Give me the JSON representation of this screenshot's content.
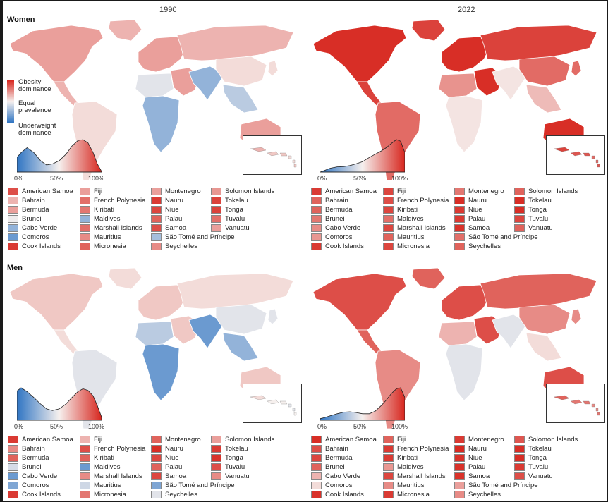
{
  "years": [
    "1990",
    "2022"
  ],
  "sections": [
    "Women",
    "Men"
  ],
  "colorbar": {
    "top": "Obesity dominance",
    "mid": "Equal prevalence",
    "bottom": "Underweight dominance",
    "top_lines": [
      "Obesity",
      "dominance"
    ],
    "mid_lines": [
      "Equal",
      "prevalence"
    ],
    "bottom_lines": [
      "Underweight",
      "dominance"
    ]
  },
  "density_ticks": [
    "0%",
    "50%",
    "100%"
  ],
  "colors": {
    "obesity": "#d7261e",
    "equal": "#f6f0ee",
    "underweight": "#2f75c3"
  },
  "chart_data": [
    {
      "type": "choropleth-map",
      "title": "Women 1990",
      "share_obesity_dominance": 0.6,
      "density": [
        [
          0,
          0.45
        ],
        [
          5,
          0.6
        ],
        [
          12,
          0.75
        ],
        [
          20,
          0.6
        ],
        [
          28,
          0.35
        ],
        [
          35,
          0.22
        ],
        [
          42,
          0.25
        ],
        [
          50,
          0.35
        ],
        [
          58,
          0.55
        ],
        [
          65,
          0.8
        ],
        [
          72,
          0.97
        ],
        [
          78,
          1.0
        ],
        [
          84,
          0.9
        ],
        [
          90,
          0.6
        ],
        [
          95,
          0.25
        ],
        [
          100,
          0.02
        ]
      ],
      "legend": {
        "American Samoa": 0.9,
        "Bahrain": 0.65,
        "Bermuda": 0.7,
        "Brunei": 0.48,
        "Cabo Verde": 0.25,
        "Comoros": 0.15,
        "Cook Islands": 0.95,
        "Fiji": 0.7,
        "French Polynesia": 0.82,
        "Kiribati": 0.8,
        "Maldives": 0.25,
        "Marshall Islands": 0.82,
        "Mauritius": 0.75,
        "Micronesia": 0.85,
        "Montenegro": 0.7,
        "Nauru": 0.95,
        "Niue": 0.92,
        "Palau": 0.85,
        "Samoa": 0.9,
        "São Tomé and Príncipe": 0.3,
        "Seychelles": 0.75,
        "Solomon Islands": 0.72,
        "Tokelau": 0.93,
        "Tonga": 0.93,
        "Tuvalu": 0.82,
        "Vanuatu": 0.7
      }
    },
    {
      "type": "choropleth-map",
      "title": "Women 2022",
      "share_obesity_dominance": 0.88,
      "density": [
        [
          0,
          0.0
        ],
        [
          5,
          0.05
        ],
        [
          12,
          0.12
        ],
        [
          20,
          0.16
        ],
        [
          28,
          0.17
        ],
        [
          35,
          0.2
        ],
        [
          42,
          0.25
        ],
        [
          50,
          0.32
        ],
        [
          58,
          0.45
        ],
        [
          65,
          0.55
        ],
        [
          72,
          0.65
        ],
        [
          78,
          0.75
        ],
        [
          84,
          0.88
        ],
        [
          90,
          1.0
        ],
        [
          95,
          0.95
        ],
        [
          100,
          0.6
        ]
      ],
      "legend": {
        "American Samoa": 0.95,
        "Bahrain": 0.85,
        "Bermuda": 0.85,
        "Brunei": 0.8,
        "Cabo Verde": 0.75,
        "Comoros": 0.72,
        "Cook Islands": 0.95,
        "Fiji": 0.92,
        "French Polynesia": 0.9,
        "Kiribati": 0.92,
        "Maldives": 0.82,
        "Marshall Islands": 0.92,
        "Mauritius": 0.85,
        "Micronesia": 0.92,
        "Montenegro": 0.8,
        "Nauru": 0.98,
        "Niue": 0.95,
        "Palau": 0.95,
        "Samoa": 0.97,
        "São Tomé and Príncipe": 0.82,
        "Seychelles": 0.85,
        "Solomon Islands": 0.85,
        "Tokelau": 0.98,
        "Tonga": 0.98,
        "Tuvalu": 0.92,
        "Vanuatu": 0.85
      }
    },
    {
      "type": "choropleth-map",
      "title": "Men 1990",
      "share_obesity_dominance": 0.5,
      "density": [
        [
          0,
          0.9
        ],
        [
          5,
          1.0
        ],
        [
          12,
          0.88
        ],
        [
          20,
          0.7
        ],
        [
          28,
          0.5
        ],
        [
          35,
          0.35
        ],
        [
          42,
          0.3
        ],
        [
          50,
          0.35
        ],
        [
          58,
          0.5
        ],
        [
          65,
          0.7
        ],
        [
          72,
          0.88
        ],
        [
          78,
          0.97
        ],
        [
          84,
          0.92
        ],
        [
          90,
          0.75
        ],
        [
          95,
          0.45
        ],
        [
          100,
          0.1
        ]
      ],
      "legend": {
        "American Samoa": 0.95,
        "Bahrain": 0.75,
        "Bermuda": 0.85,
        "Brunei": 0.42,
        "Cabo Verde": 0.15,
        "Comoros": 0.2,
        "Cook Islands": 0.95,
        "Fiji": 0.65,
        "French Polynesia": 0.9,
        "Kiribati": 0.85,
        "Maldives": 0.15,
        "Marshall Islands": 0.75,
        "Mauritius": 0.4,
        "Micronesia": 0.8,
        "Montenegro": 0.85,
        "Nauru": 0.98,
        "Niue": 0.92,
        "Palau": 0.85,
        "Samoa": 0.92,
        "São Tomé and Príncipe": 0.2,
        "Seychelles": 0.45,
        "Solomon Islands": 0.7,
        "Tokelau": 0.95,
        "Tonga": 0.97,
        "Tuvalu": 0.9,
        "Vanuatu": 0.75
      }
    },
    {
      "type": "choropleth-map",
      "title": "Men 2022",
      "share_obesity_dominance": 0.8,
      "density": [
        [
          0,
          0.05
        ],
        [
          5,
          0.08
        ],
        [
          12,
          0.14
        ],
        [
          20,
          0.2
        ],
        [
          28,
          0.25
        ],
        [
          35,
          0.26
        ],
        [
          42,
          0.24
        ],
        [
          50,
          0.2
        ],
        [
          58,
          0.2
        ],
        [
          65,
          0.28
        ],
        [
          72,
          0.45
        ],
        [
          78,
          0.62
        ],
        [
          84,
          0.82
        ],
        [
          90,
          0.97
        ],
        [
          95,
          1.0
        ],
        [
          100,
          0.7
        ]
      ],
      "legend": {
        "American Samoa": 0.98,
        "Bahrain": 0.9,
        "Bermuda": 0.92,
        "Brunei": 0.85,
        "Cabo Verde": 0.65,
        "Comoros": 0.55,
        "Cook Islands": 0.97,
        "Fiji": 0.85,
        "French Polynesia": 0.95,
        "Kiribati": 0.95,
        "Maldives": 0.72,
        "Marshall Islands": 0.92,
        "Mauritius": 0.75,
        "Micronesia": 0.95,
        "Montenegro": 0.95,
        "Nauru": 0.99,
        "Niue": 0.97,
        "Palau": 0.97,
        "Samoa": 0.97,
        "São Tomé and Príncipe": 0.7,
        "Seychelles": 0.75,
        "Solomon Islands": 0.88,
        "Tokelau": 0.98,
        "Tonga": 0.98,
        "Tuvalu": 0.95,
        "Vanuatu": 0.9
      }
    }
  ],
  "legend_items": [
    "American Samoa",
    "Bahrain",
    "Bermuda",
    "Brunei",
    "Cabo Verde",
    "Comoros",
    "Cook Islands",
    "Fiji",
    "French Polynesia",
    "Kiribati",
    "Maldives",
    "Marshall Islands",
    "Mauritius",
    "Micronesia",
    "Montenegro",
    "Nauru",
    "Niue",
    "Palau",
    "Samoa",
    "São Tomé and Príncipe",
    "Seychelles",
    "Solomon Islands",
    "Tokelau",
    "Tonga",
    "Tuvalu",
    "Vanuatu"
  ]
}
